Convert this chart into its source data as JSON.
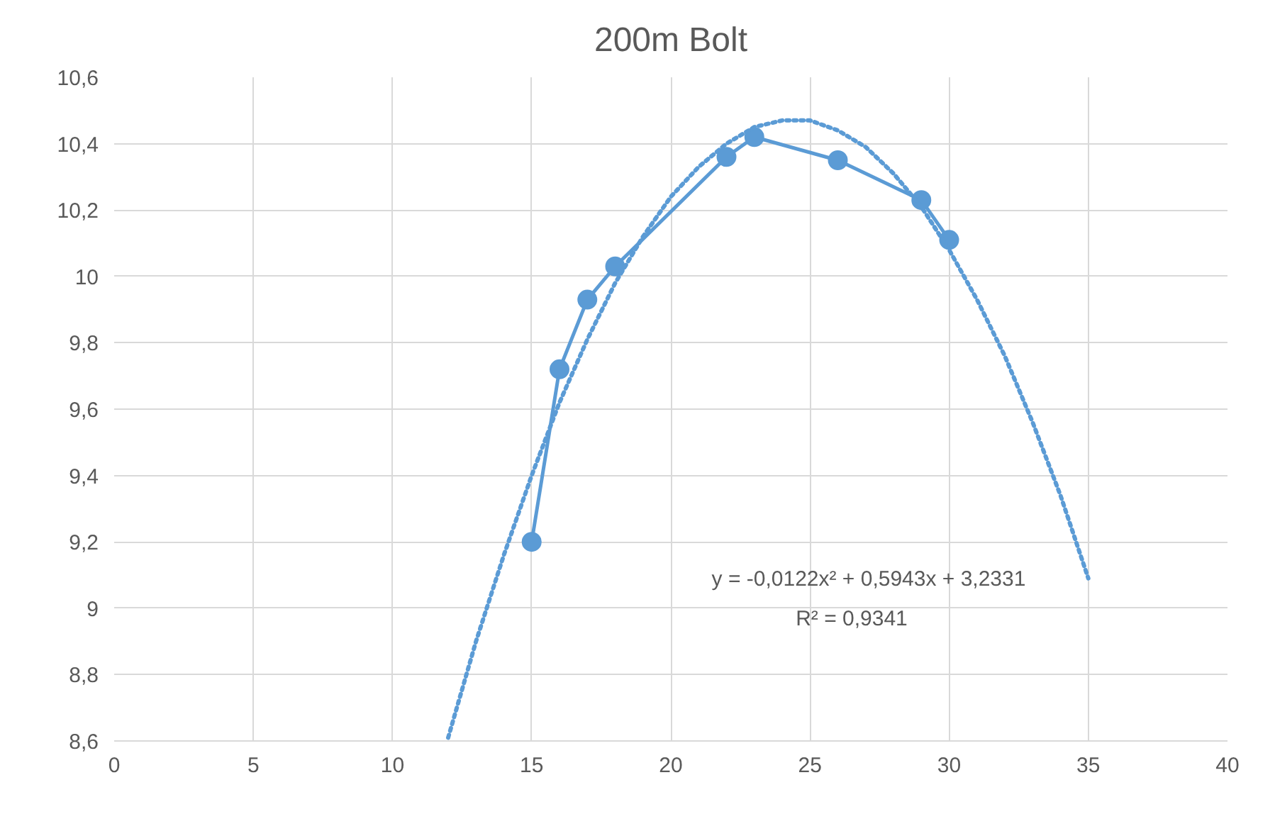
{
  "chart_data": {
    "type": "line",
    "title": "200m Bolt",
    "xlim": [
      0,
      40
    ],
    "xticks": [
      0,
      5,
      10,
      15,
      20,
      25,
      30,
      35,
      40
    ],
    "ylim": [
      8.6,
      10.6
    ],
    "yticks": [
      {
        "value": 8.6,
        "label": "8,6"
      },
      {
        "value": 8.8,
        "label": "8,8"
      },
      {
        "value": 9,
        "label": "9"
      },
      {
        "value": 9.2,
        "label": "9,2"
      },
      {
        "value": 9.4,
        "label": "9,4"
      },
      {
        "value": 9.6,
        "label": "9,6"
      },
      {
        "value": 9.8,
        "label": "9,8"
      },
      {
        "value": 10,
        "label": "10"
      },
      {
        "value": 10.2,
        "label": "10,2"
      },
      {
        "value": 10.4,
        "label": "10,4"
      },
      {
        "value": 10.6,
        "label": "10,6"
      }
    ],
    "grid": true,
    "series": [
      {
        "color": "#5b9bd5",
        "marker": "circle",
        "line_style": "solid",
        "x": [
          15,
          16,
          17,
          18,
          22,
          23,
          26,
          29,
          30
        ],
        "values": [
          9.2,
          9.72,
          9.93,
          10.03,
          10.36,
          10.42,
          10.35,
          10.23,
          10.11
        ]
      },
      {
        "type": "line",
        "color": "#5b9bd5",
        "marker": "none",
        "line_style": "dotted",
        "x": [
          12,
          13,
          14,
          15,
          16,
          17,
          18,
          19,
          20,
          21,
          22,
          23,
          24,
          25,
          26,
          27,
          28,
          29,
          30,
          31,
          32,
          33,
          34,
          35
        ],
        "values": [
          8.61,
          8.9,
          9.16,
          9.4,
          9.62,
          9.81,
          9.98,
          10.12,
          10.24,
          10.33,
          10.4,
          10.45,
          10.47,
          10.47,
          10.44,
          10.39,
          10.31,
          10.21,
          10.08,
          9.93,
          9.76,
          9.56,
          9.34,
          9.09
        ]
      }
    ],
    "annotations": [
      "y = -0,0122x² + 0,5943x + 3,2331",
      "R² = 0,9341"
    ]
  }
}
